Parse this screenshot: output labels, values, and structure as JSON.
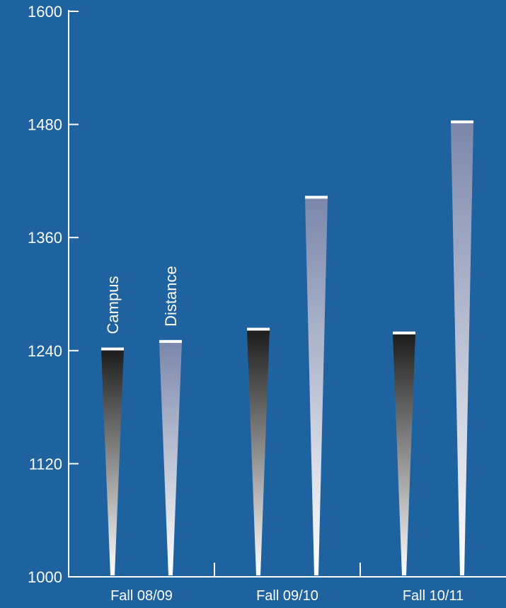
{
  "colors": {
    "background": "#1f62a0",
    "axis": "#ffffff",
    "campus_top": "#1c1c1c",
    "campus_bottom": "#ffffff",
    "distance_top": "#7b87ab",
    "distance_bottom": "#ffffff",
    "cap": "#ffffff"
  },
  "chart_data": {
    "type": "bar",
    "title": "",
    "xlabel": "",
    "ylabel": "",
    "ylim": [
      1000,
      1600
    ],
    "yticks": [
      1000,
      1120,
      1240,
      1360,
      1480,
      1600
    ],
    "categories": [
      "Fall 08/09",
      "Fall 09/10",
      "Fall 10/11"
    ],
    "series": [
      {
        "name": "Campus",
        "values": [
          1241,
          1262,
          1258
        ]
      },
      {
        "name": "Distance",
        "values": [
          1249,
          1402,
          1482
        ]
      }
    ],
    "legend": "inline-labels-above-first-group",
    "grid": false
  }
}
